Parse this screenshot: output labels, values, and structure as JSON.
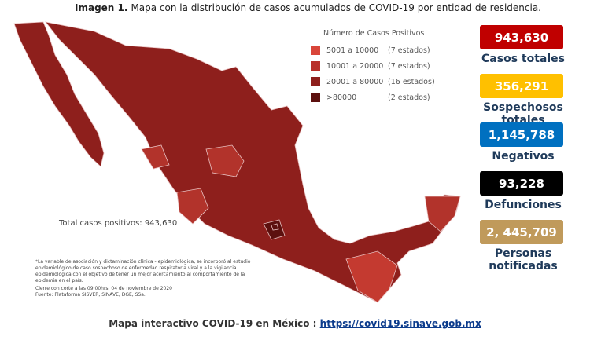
{
  "header": {
    "label": "Imagen 1.",
    "title": "Mapa con la distribución de casos acumulados de COVID-19 por entidad de residencia."
  },
  "legend": {
    "title": "Número de Casos Positivos",
    "items": [
      {
        "range": "5001 a  10000",
        "count": "(7 estados)"
      },
      {
        "range": "10001 a  20000",
        "count": "(7 estados)"
      },
      {
        "range": "20001 a  80000",
        "count": "(16 estados)"
      },
      {
        "range": ">80000",
        "count": "(2 estados)"
      }
    ]
  },
  "map": {
    "total": "Total casos positivos: 943,630",
    "note": "*La variable de asociación y dictaminación clínica - epidemiológica, se incorporó al estudio epidemiológico de caso sospechoso de enfermedad respiratoria viral y a la vigilancia epidemiológica con el objetivo de tener un mejor acercamiento al comportamiento de la epidemia en el país.",
    "cutoff": "Cierre con corte a las 09:00hrs, 04 de noviembre de 2020",
    "source": "Fuente: Plataforma SISVER, SINAVE, DGE, SSa."
  },
  "stats": [
    {
      "value": "943,630",
      "label": "Casos totales"
    },
    {
      "value": "356,291",
      "label": "Sospechosos totales"
    },
    {
      "value": "1,145,788",
      "label": "Negativos"
    },
    {
      "value": "93,228",
      "label": "Defunciones"
    },
    {
      "value": "2, 445,709",
      "label": "Personas notificadas"
    }
  ],
  "footer": {
    "text": "Mapa interactivo COVID-19 en México :",
    "link": "https://covid19.sinave.gob.mx"
  }
}
